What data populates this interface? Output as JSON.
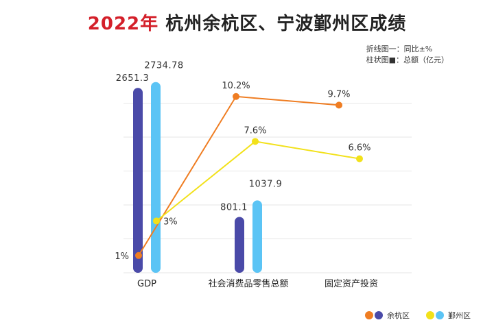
{
  "title": {
    "year": "2022年",
    "rest": " 杭州余杭区、宁波鄞州区成绩"
  },
  "notes": {
    "line_note": "折线图一：同比±%",
    "bar_note": "柱状图■：总额（亿元）"
  },
  "legend": {
    "yuhang": "余杭区",
    "yinzhou": "鄞州区"
  },
  "colors": {
    "yuhang_bar": "#4a4aa8",
    "yinzhou_bar": "#5bc4f5",
    "yuhang_line": "#ef7d22",
    "yinzhou_line": "#f2e11a",
    "grid": "#e6e6e6"
  },
  "chart_data": {
    "type": "bar+line",
    "categories": [
      "GDP",
      "社会消费品零售总额",
      "固定资产投资"
    ],
    "bar_series": [
      {
        "name": "余杭区",
        "values": [
          2651.3,
          801.1,
          null
        ],
        "labels": [
          "2651.3",
          "801.1",
          ""
        ]
      },
      {
        "name": "鄞州区",
        "values": [
          2734.78,
          1037.9,
          null
        ],
        "labels": [
          "2734.78",
          "1037.9",
          ""
        ]
      }
    ],
    "line_series": [
      {
        "name": "余杭区",
        "values": [
          1,
          10.2,
          9.7
        ],
        "labels": [
          "1%",
          "10.2%",
          "9.7%"
        ]
      },
      {
        "name": "鄞州区",
        "values": [
          3,
          7.6,
          6.6
        ],
        "labels": [
          "3%",
          "7.6%",
          "6.6%"
        ]
      }
    ],
    "bar_ylim": [
      0,
      2850
    ],
    "line_ylim": [
      0,
      11.5
    ]
  }
}
